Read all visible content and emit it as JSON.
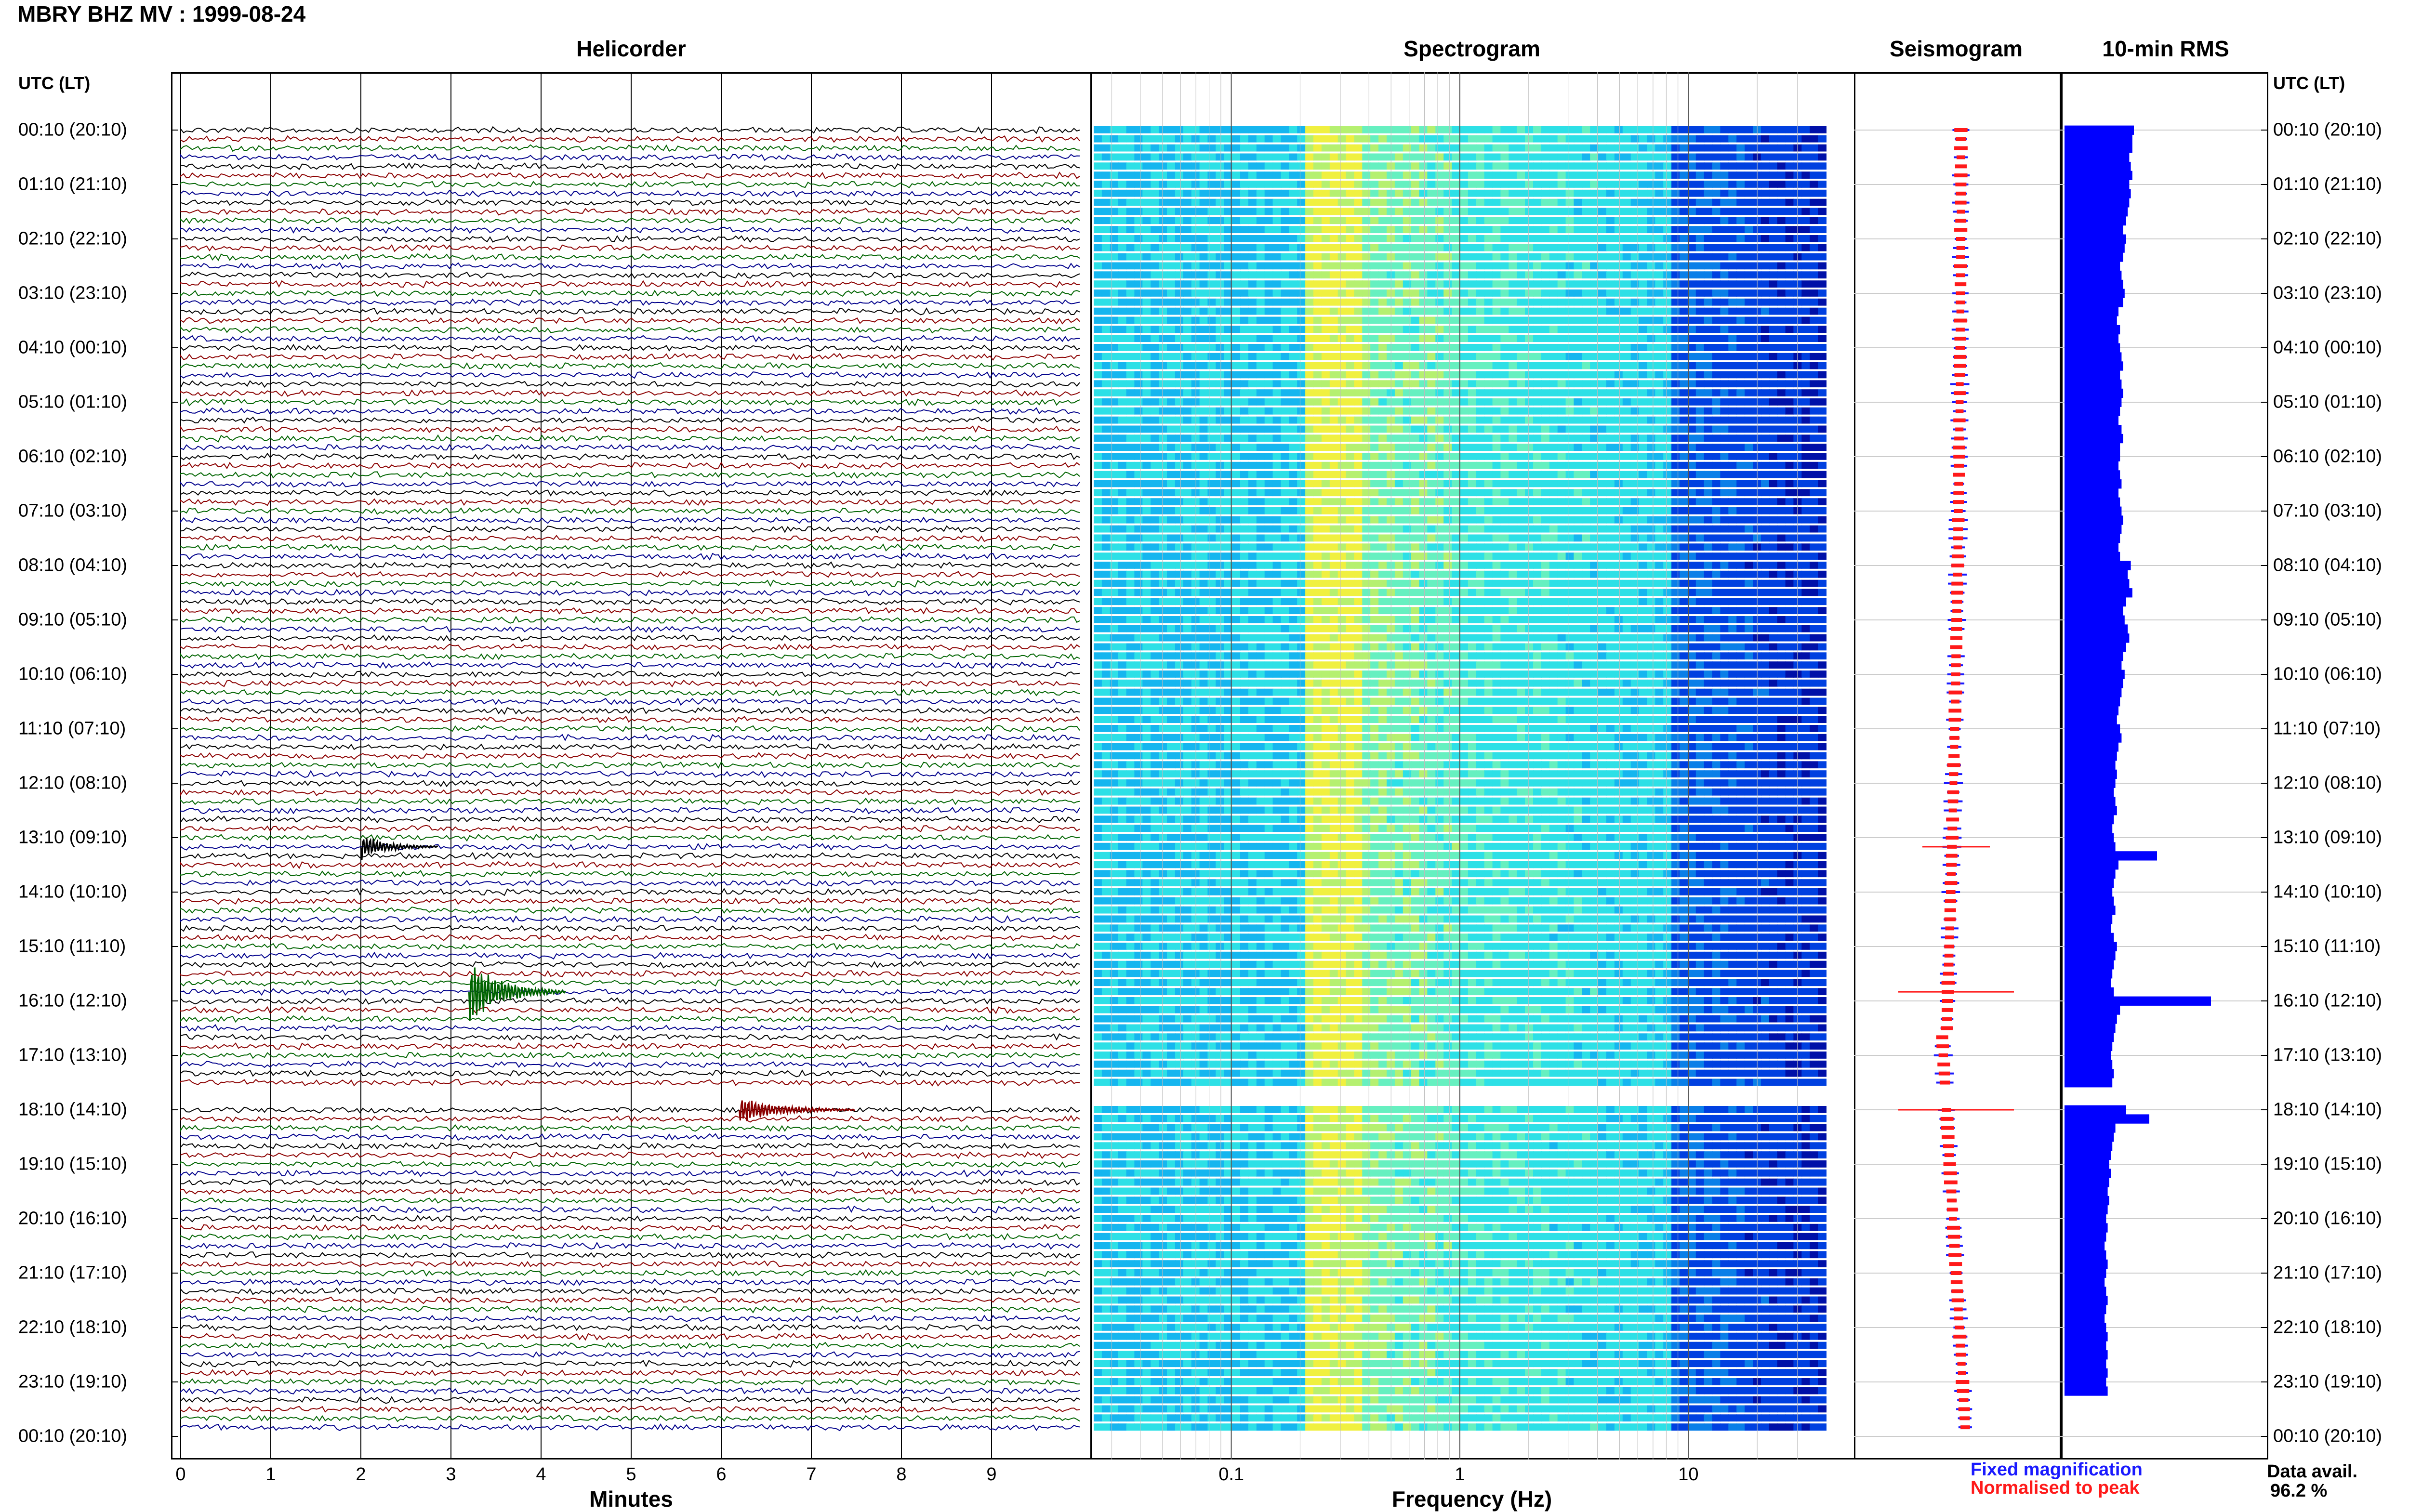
{
  "header": {
    "title": "MBRY BHZ MV : 1999-08-24"
  },
  "panels": {
    "helicorder": "Helicorder",
    "spectrogram": "Spectrogram",
    "seismogram": "Seismogram",
    "rms": "10-min RMS"
  },
  "axis_heads": {
    "left": "UTC (LT)",
    "right": "UTC (LT)"
  },
  "time_labels": [
    "00:10 (20:10)",
    "01:10 (21:10)",
    "02:10 (22:10)",
    "03:10 (23:10)",
    "04:10 (00:10)",
    "05:10 (01:10)",
    "06:10 (02:10)",
    "07:10 (03:10)",
    "08:10 (04:10)",
    "09:10 (05:10)",
    "10:10 (06:10)",
    "11:10 (07:10)",
    "12:10 (08:10)",
    "13:10 (09:10)",
    "14:10 (10:10)",
    "15:10 (11:10)",
    "16:10 (12:10)",
    "17:10 (13:10)",
    "18:10 (14:10)",
    "19:10 (15:10)",
    "20:10 (16:10)",
    "21:10 (17:10)",
    "22:10 (18:10)",
    "23:10 (19:10)",
    "00:10 (20:10)"
  ],
  "x_axes": {
    "minutes_label": "Minutes",
    "minutes_ticks": [
      "0",
      "1",
      "2",
      "3",
      "4",
      "5",
      "6",
      "7",
      "8",
      "9"
    ],
    "frequency_label": "Frequency (Hz)",
    "frequency_ticks": [
      "0.1",
      "1",
      "10"
    ]
  },
  "legend": {
    "fixed": "Fixed magnification",
    "normalised": "Normalised to peak",
    "fixed_color": "#1a1aff",
    "normalised_color": "#ff1a1a"
  },
  "data_availability": {
    "label": "Data avail.",
    "value": "96.2 %"
  },
  "colors": {
    "trace_cycle": [
      "#000000",
      "#8b0000",
      "#006400",
      "#00008b"
    ],
    "rms_bar": "#0000ff"
  },
  "chart_data": {
    "type": "heatmap",
    "helicorder": {
      "x_range_minutes": [
        0,
        10
      ],
      "lines_per_hour": 6,
      "hours": 24,
      "events": [
        {
          "time_utc": "13:20",
          "minute": 2.0,
          "color": "black"
        },
        {
          "time_utc": "16:00",
          "minute": 3.2,
          "color": "green"
        },
        {
          "time_utc": "18:10",
          "minute": 6.2,
          "color": "red"
        }
      ],
      "gap_utc": [
        "17:50",
        "18:00"
      ]
    },
    "spectrogram": {
      "x_scale": "log",
      "x_range_hz": [
        0.025,
        40
      ],
      "dominant_band_hz": [
        0.2,
        0.35
      ]
    },
    "rms_10min": {
      "relative_values": [
        0.45,
        0.44,
        0.44,
        0.42,
        0.43,
        0.44,
        0.42,
        0.43,
        0.42,
        0.41,
        0.4,
        0.38,
        0.4,
        0.39,
        0.38,
        0.36,
        0.37,
        0.38,
        0.39,
        0.38,
        0.35,
        0.34,
        0.36,
        0.35,
        0.36,
        0.37,
        0.38,
        0.36,
        0.37,
        0.38,
        0.37,
        0.36,
        0.35,
        0.37,
        0.38,
        0.36,
        0.36,
        0.35,
        0.36,
        0.37,
        0.35,
        0.36,
        0.37,
        0.38,
        0.37,
        0.36,
        0.35,
        0.36,
        0.43,
        0.41,
        0.42,
        0.44,
        0.4,
        0.38,
        0.39,
        0.41,
        0.42,
        0.4,
        0.38,
        0.37,
        0.39,
        0.38,
        0.37,
        0.36,
        0.35,
        0.34,
        0.36,
        0.37,
        0.35,
        0.34,
        0.33,
        0.34,
        0.33,
        0.32,
        0.33,
        0.34,
        0.32,
        0.31,
        0.32,
        0.33,
        0.6,
        0.35,
        0.33,
        0.32,
        0.31,
        0.32,
        0.33,
        0.31,
        0.3,
        0.32,
        0.34,
        0.33,
        0.32,
        0.31,
        0.3,
        0.32,
        0.95,
        0.36,
        0.34,
        0.33,
        0.32,
        0.31,
        0.3,
        0.31,
        0.32,
        0.31,
        0.3,
        0.29,
        0.4,
        0.55,
        0.33,
        0.32,
        0.31,
        0.3,
        0.29,
        0.3,
        0.29,
        0.28,
        0.29,
        0.28,
        0.27,
        0.28,
        0.27,
        0.26,
        0.27,
        0.28,
        0.27,
        0.26,
        0.27,
        0.28,
        0.27,
        0.26,
        0.27,
        0.28,
        0.27,
        0.28,
        0.27,
        0.28,
        0.27,
        0.28
      ],
      "peak_utc": "16:00"
    },
    "data_availability_percent": 96.2
  }
}
